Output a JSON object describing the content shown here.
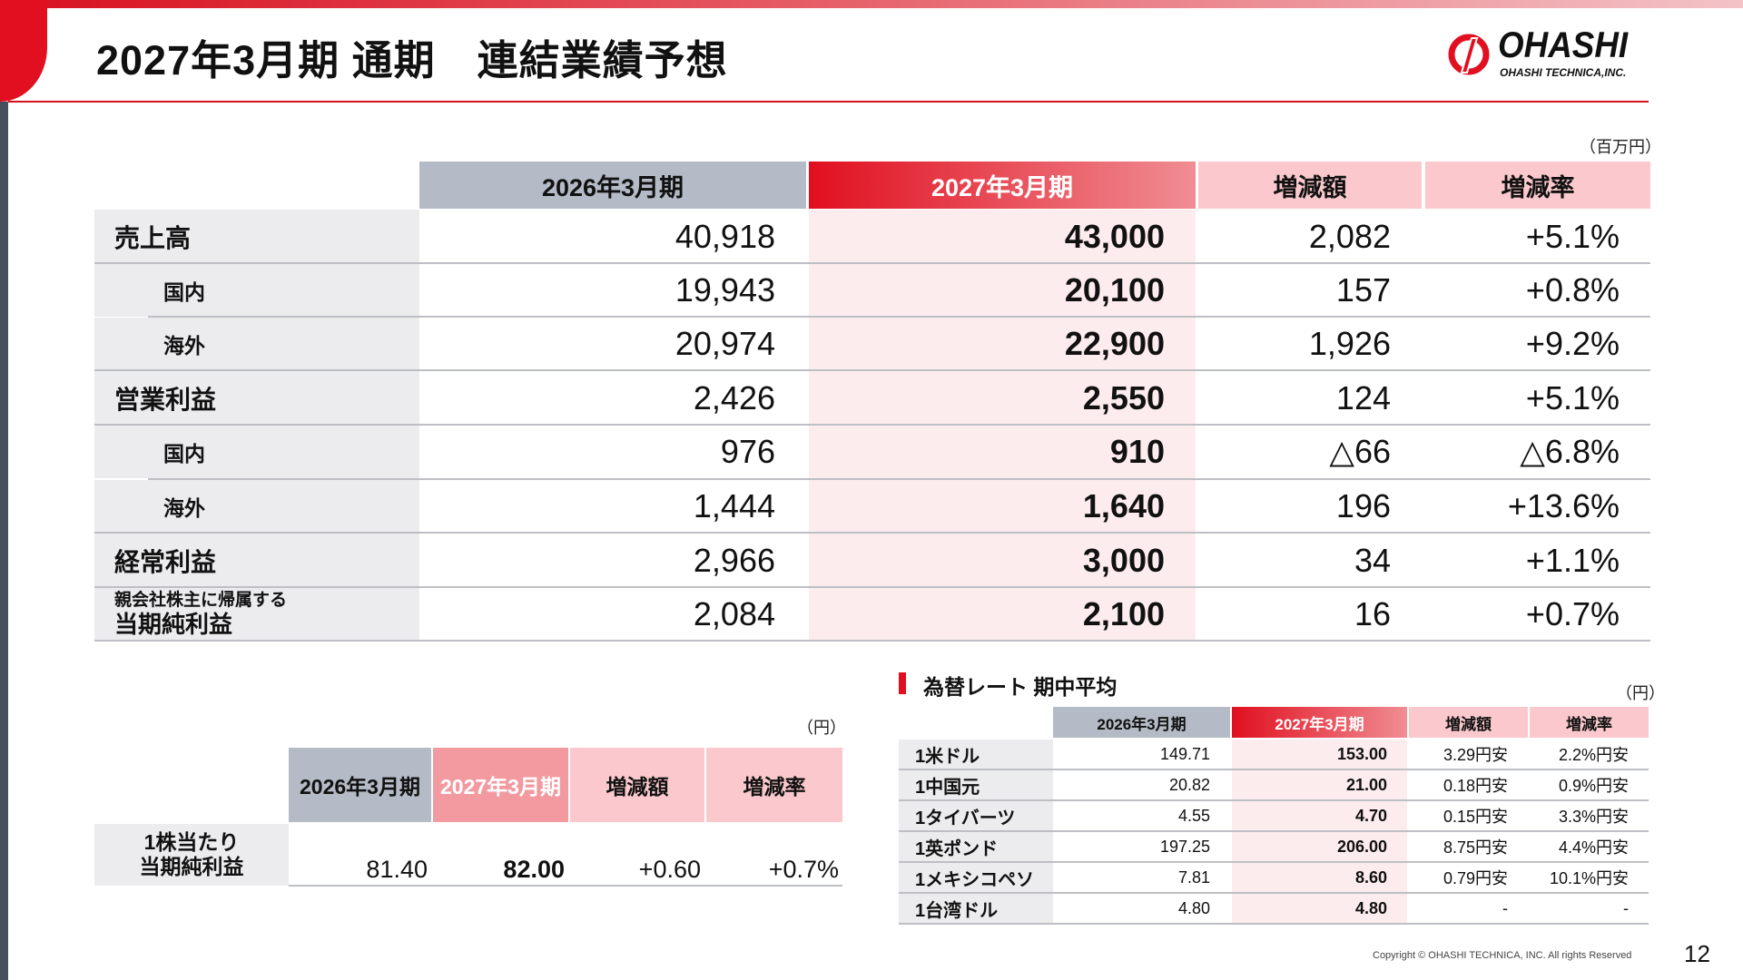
{
  "title": "2027年3月期 通期　連結業績予想",
  "logo": {
    "word": "OHASHI",
    "sub": "OHASHI TECHNICA,INC."
  },
  "main_table": {
    "unit": "（百万円）",
    "headers": [
      "2026年3月期",
      "2027年3月期",
      "増減額",
      "増減率"
    ],
    "rows": [
      {
        "label": "売上高",
        "values": [
          "40,918",
          "43,000",
          "2,082",
          "+5.1%"
        ]
      },
      {
        "label": "国内",
        "values": [
          "19,943",
          "20,100",
          "157",
          "+0.8%"
        ]
      },
      {
        "label": "海外",
        "values": [
          "20,974",
          "22,900",
          "1,926",
          "+9.2%"
        ]
      },
      {
        "label": "営業利益",
        "values": [
          "2,426",
          "2,550",
          "124",
          "+5.1%"
        ]
      },
      {
        "label": "国内",
        "values": [
          "976",
          "910",
          "△66",
          "△6.8%"
        ]
      },
      {
        "label": "海外",
        "values": [
          "1,444",
          "1,640",
          "196",
          "+13.6%"
        ]
      },
      {
        "label": "経常利益",
        "values": [
          "2,966",
          "3,000",
          "34",
          "+1.1%"
        ]
      },
      {
        "label_line1": "親会社株主に帰属する",
        "label_line2": "当期純利益",
        "values": [
          "2,084",
          "2,100",
          "16",
          "+0.7%"
        ]
      }
    ]
  },
  "eps_table": {
    "unit": "（円）",
    "headers": [
      "2026年3月期",
      "2027年3月期",
      "増減額",
      "増減率"
    ],
    "label_line1": "1株当たり",
    "label_line2": "当期純利益",
    "values": [
      "81.40",
      "82.00",
      "+0.60",
      "+0.7%"
    ]
  },
  "fx_table": {
    "title": "為替レート 期中平均",
    "unit": "（円）",
    "headers": [
      "2026年3月期",
      "2027年3月期",
      "増減額",
      "増減率"
    ],
    "rows": [
      {
        "label": "1米ドル",
        "values": [
          "149.71",
          "153.00",
          "3.29円安",
          "2.2%円安"
        ]
      },
      {
        "label": "1中国元",
        "values": [
          "20.82",
          "21.00",
          "0.18円安",
          "0.9%円安"
        ]
      },
      {
        "label": "1タイバーツ",
        "values": [
          "4.55",
          "4.70",
          "0.15円安",
          "3.3%円安"
        ]
      },
      {
        "label": "1英ポンド",
        "values": [
          "197.25",
          "206.00",
          "8.75円安",
          "4.4%円安"
        ]
      },
      {
        "label": "1メキシコペソ",
        "values": [
          "7.81",
          "8.60",
          "0.79円安",
          "10.1%円安"
        ]
      },
      {
        "label": "1台湾ドル",
        "values": [
          "4.80",
          "4.80",
          "-",
          "-"
        ]
      }
    ]
  },
  "footer": {
    "copyright": "Copyright © OHASHI TECHNICA, INC. All rights Reserved",
    "page_number": "12"
  },
  "colors": {
    "brand_red": "#e10f1f",
    "header_gray": "#b5bbc6",
    "header_pink": "#fbc9cd",
    "label_gray": "#ececee",
    "highlight_pink": "#fdeced"
  }
}
